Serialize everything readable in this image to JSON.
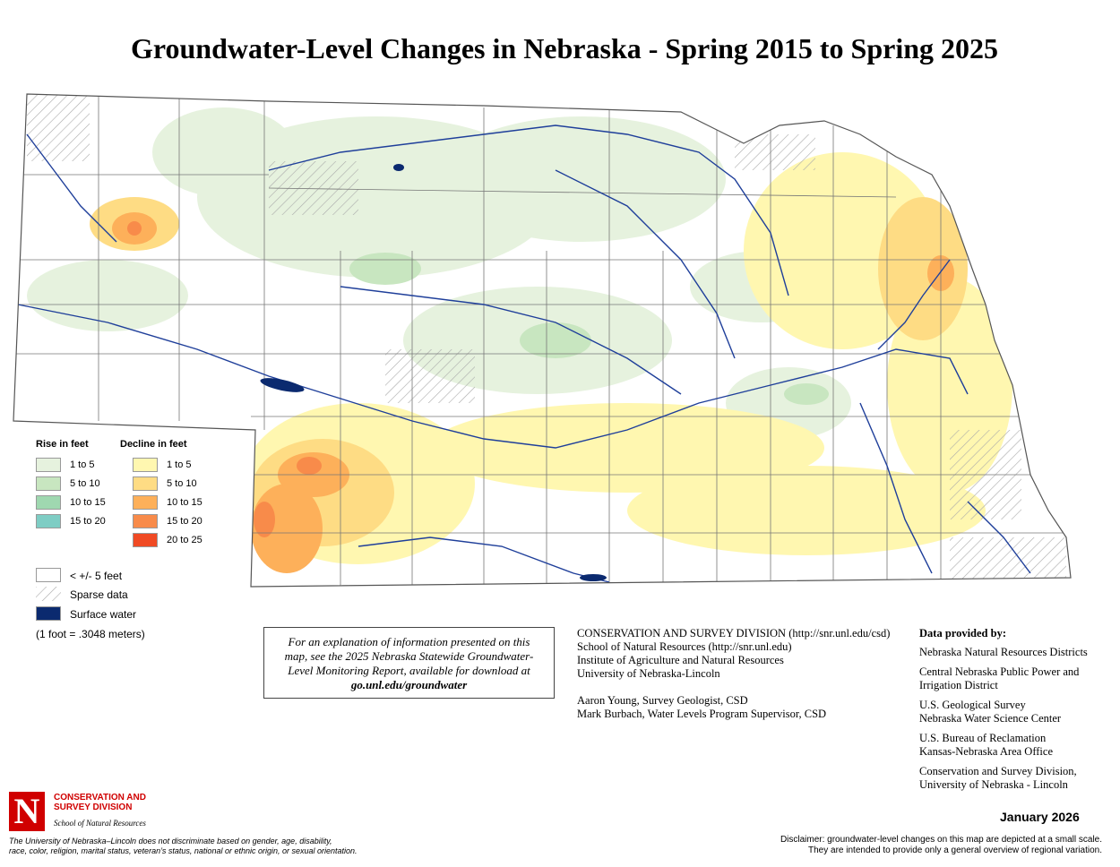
{
  "title": "Groundwater-Level Changes in Nebraska - Spring 2015 to Spring 2025",
  "legend": {
    "rise_heading": "Rise in feet",
    "rise": [
      "1 to 5",
      "5 to 10",
      "10 to 15",
      "15 to 20"
    ],
    "decline_heading": "Decline in feet",
    "decline": [
      "1 to 5",
      "5 to 10",
      "10 to 15",
      "15 to 20",
      "20 to 25"
    ],
    "other": [
      "< +/- 5 feet",
      "Sparse data",
      "Surface water"
    ],
    "conversion": "(1 foot = .3048 meters)"
  },
  "explanation": {
    "lines": [
      "For an explanation of information presented on this",
      "map, see the 2025 Nebraska Statewide Groundwater-",
      "Level Monitoring Report, available for download at"
    ],
    "link": "go.unl.edu/groundwater"
  },
  "credits": {
    "lines": [
      "CONSERVATION AND SURVEY DIVISION (http://snr.unl.edu/csd)",
      "School of Natural Resources (http://snr.unl.edu)",
      "Institute of Agriculture and Natural Resources",
      "University of Nebraska-Lincoln"
    ],
    "authors": [
      "Aaron Young, Survey Geologist, CSD",
      "Mark Burbach, Water Levels Program Supervisor, CSD"
    ]
  },
  "data_providers": {
    "heading": "Data provided by:",
    "entries": [
      [
        "Nebraska Natural Resources Districts"
      ],
      [
        "Central Nebraska Public Power and",
        "Irrigation District"
      ],
      [
        "U.S. Geological Survey",
        "Nebraska Water Science Center"
      ],
      [
        "U.S. Bureau of Reclamation",
        "Kansas-Nebraska Area Office"
      ],
      [
        "Conservation and Survey Division,",
        "University of Nebraska - Lincoln"
      ]
    ]
  },
  "logo": {
    "letter": "N",
    "division": [
      "CONSERVATION AND",
      "SURVEY DIVISION"
    ],
    "school": "School of Natural Resources"
  },
  "footer": {
    "nondiscrimination": [
      "The University of Nebraska–Lincoln does not discriminate based on gender, age, disability,",
      "race, color, religion, marital status, veteran’s status, national or ethnic origin, or sexual orientation."
    ],
    "date": "January 2026",
    "disclaimer": [
      "Disclaimer: groundwater-level changes on this map are depicted at a small scale.",
      "They are intended to provide only a general overview of regional variation."
    ]
  }
}
